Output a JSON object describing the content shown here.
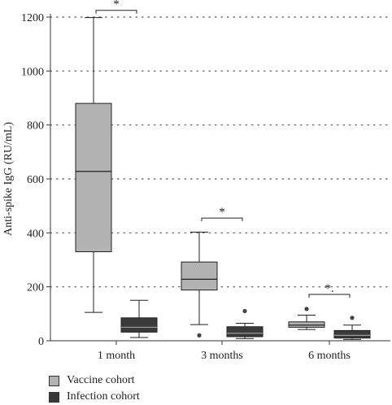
{
  "chart_data": {
    "type": "box",
    "ylabel": "Anti-spike IgG (RU/mL)",
    "xlabel": "",
    "title": "",
    "ylim": [
      0,
      1200
    ],
    "yticks": [
      0,
      200,
      400,
      600,
      800,
      1000,
      1200
    ],
    "grid": "horizontal dotted",
    "categories": [
      "1 month",
      "3 months",
      "6 months"
    ],
    "series": [
      {
        "name": "Vaccine cohort",
        "color": "#b3b3b3",
        "boxes": [
          {
            "min": 105,
            "q1": 330,
            "median": 628,
            "q3": 880,
            "max": 1198,
            "outliers": []
          },
          {
            "min": 60,
            "q1": 188,
            "median": 228,
            "q3": 292,
            "max": 403,
            "outliers": [
              20
            ]
          },
          {
            "min": 42,
            "q1": 50,
            "median": 58,
            "q3": 70,
            "max": 95,
            "outliers": [
              118
            ]
          }
        ]
      },
      {
        "name": "Infection cohort",
        "color": "#3a3a3a",
        "boxes": [
          {
            "min": 12,
            "q1": 32,
            "median": 50,
            "q3": 85,
            "max": 150,
            "outliers": []
          },
          {
            "min": 8,
            "q1": 15,
            "median": 28,
            "q3": 52,
            "max": 65,
            "outliers": [
              110
            ]
          },
          {
            "min": 5,
            "q1": 10,
            "median": 20,
            "q3": 38,
            "max": 58,
            "outliers": [
              85
            ]
          }
        ]
      }
    ],
    "significance": [
      {
        "category": "1 month",
        "label": "*",
        "y": 1225
      },
      {
        "category": "3 months",
        "label": "*",
        "y": 455
      },
      {
        "category": "6 months",
        "label": "*.",
        "y": 172
      }
    ],
    "legend": {
      "placement": "bottom-left",
      "entries": [
        "Vaccine cohort",
        "Infection cohort"
      ]
    }
  }
}
